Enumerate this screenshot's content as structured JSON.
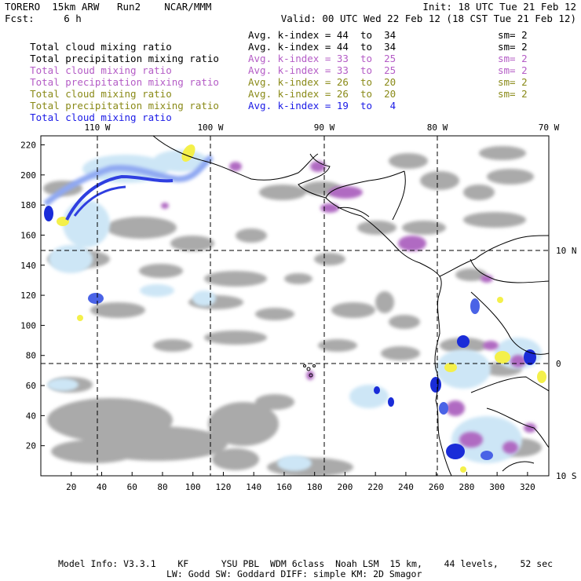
{
  "header": {
    "left_line1": "TORERO  15km ARW   Run2    NCAR/MMM",
    "right_line1": "Init: 18 UTC Tue 21 Feb 12",
    "left_line2": "Fcst:     6 h",
    "right_line2": "Valid: 00 UTC Wed 22 Feb 12 (18 CST Tue 21 Feb 12)"
  },
  "colors": {
    "black": "#000000",
    "purple": "#b45cc6",
    "olive": "#8a8a18",
    "blue": "#1a1ae6",
    "gray_field": "#a0a0a0",
    "light_blue_field": "#cfe8f7",
    "mid_blue_field": "#6f8ef0",
    "dark_blue_field": "#1a2cd8",
    "yellow_field": "#f3f048",
    "purple_field": "#b26bc0"
  },
  "legend": [
    {
      "field": "Total cloud mixing ratio",
      "stat": "Avg. k-index =",
      "from": "44",
      "to_word": "to",
      "to": "34",
      "sm": "sm= 2",
      "color": "black"
    },
    {
      "field": "Total precipitation mixing ratio",
      "stat": "Avg. k-index =",
      "from": "44",
      "to_word": "to",
      "to": "34",
      "sm": "sm= 2",
      "color": "black"
    },
    {
      "field": "Total cloud mixing ratio",
      "stat": "Avg. k-index =",
      "from": "33",
      "to_word": "to",
      "to": "25",
      "sm": "sm= 2",
      "color": "purple"
    },
    {
      "field": "Total precipitation mixing ratio",
      "stat": "Avg. k-index =",
      "from": "33",
      "to_word": "to",
      "to": "25",
      "sm": "sm= 2",
      "color": "purple"
    },
    {
      "field": "Total cloud mixing ratio",
      "stat": "Avg. k-index =",
      "from": "26",
      "to_word": "to",
      "to": "20",
      "sm": "sm= 2",
      "color": "olive"
    },
    {
      "field": "Total precipitation mixing ratio",
      "stat": "Avg. k-index =",
      "from": "26",
      "to_word": "to",
      "to": "20",
      "sm": "sm= 2",
      "color": "olive"
    },
    {
      "field": "Total cloud mixing ratio",
      "stat": "Avg. k-index =",
      "from": "19",
      "to_word": "to",
      "to": "4",
      "sm": "",
      "color": "blue"
    }
  ],
  "map": {
    "lon_labels": [
      "110 W",
      "100 W",
      "90 W",
      "80 W",
      "70 W"
    ],
    "lat_labels": [
      "10 N",
      "0",
      "10 S"
    ],
    "grid_y_labels": [
      "220",
      "200",
      "180",
      "160",
      "140",
      "120",
      "100",
      "80",
      "60",
      "40",
      "20"
    ],
    "grid_x_labels": [
      "20",
      "40",
      "60",
      "80",
      "100",
      "120",
      "140",
      "160",
      "180",
      "200",
      "220",
      "240",
      "260",
      "280",
      "300",
      "320"
    ],
    "grid_x_range": [
      0,
      334
    ],
    "grid_y_range": [
      0,
      226
    ]
  },
  "footer": {
    "line1": "Model Info: V3.3.1    KF      YSU PBL  WDM 6class  Noah LSM  15 km,    44 levels,    52 sec",
    "line2": "LW: Godd SW: Goddard DIFF: simple KM: 2D Smagor"
  }
}
